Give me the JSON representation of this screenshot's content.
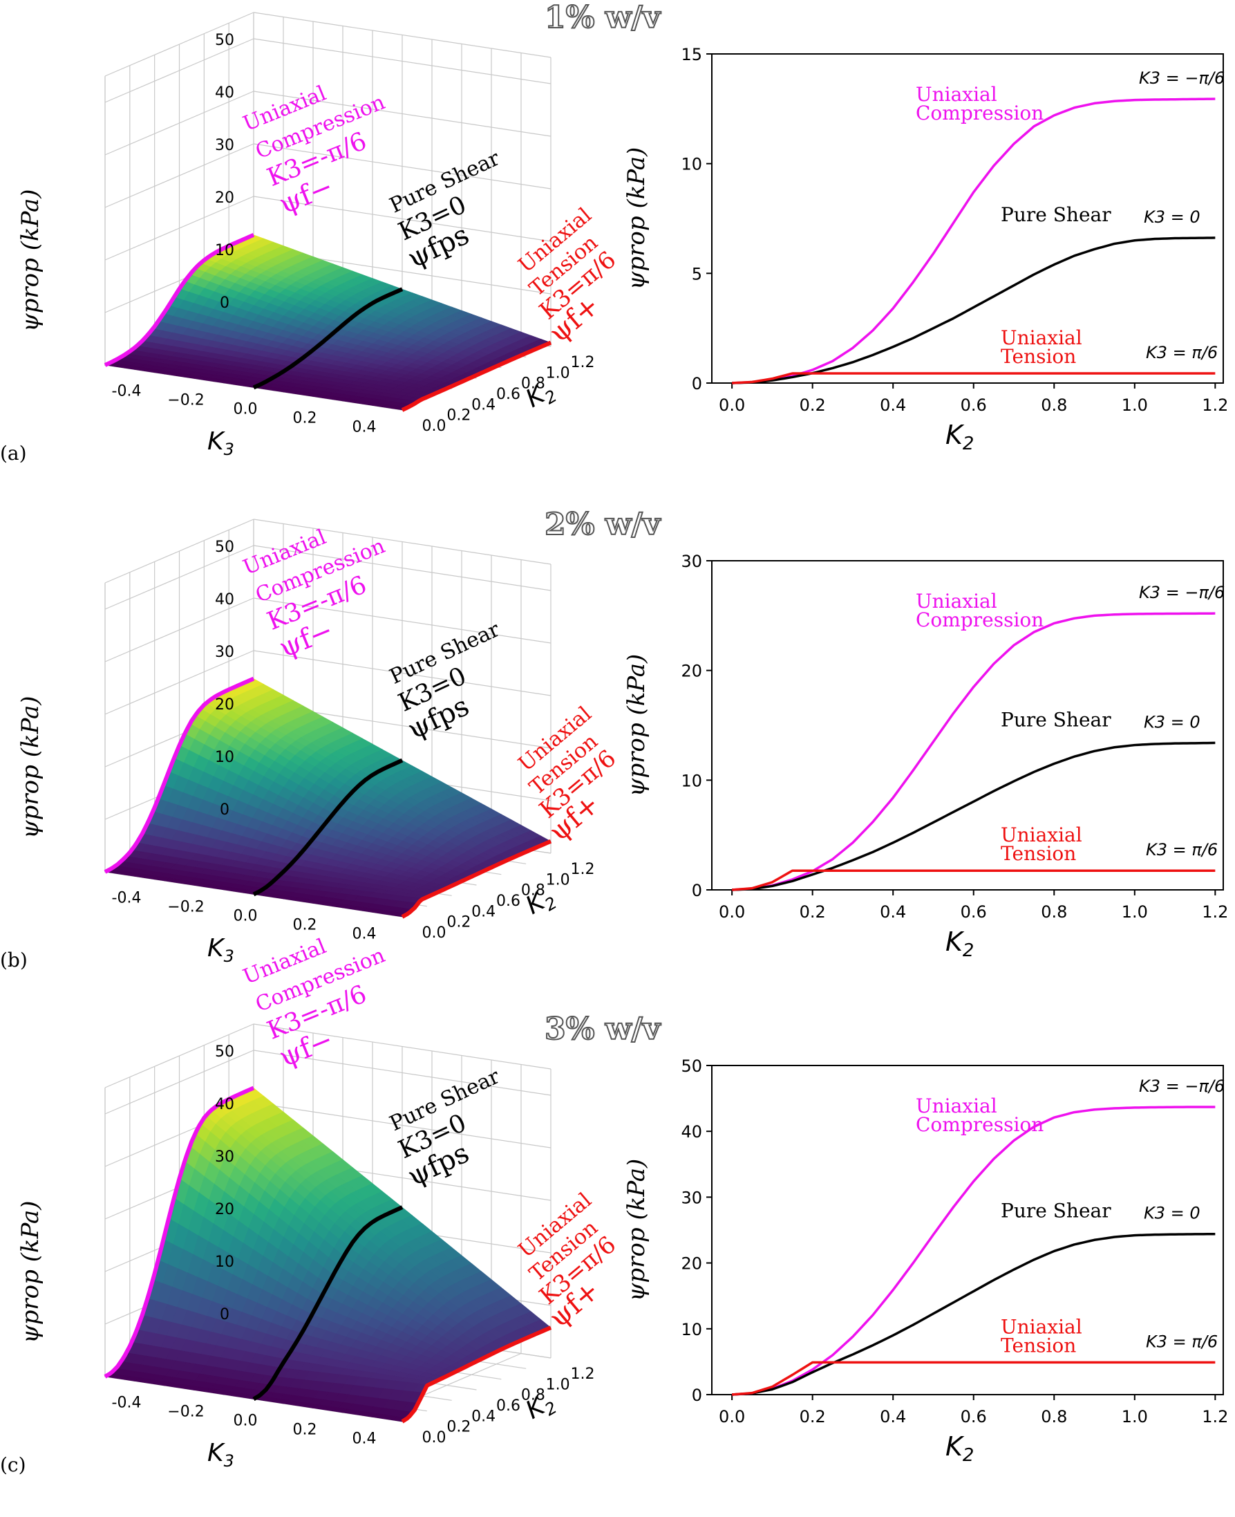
{
  "colors": {
    "compression": "#ee11ee",
    "shear": "#000000",
    "tension": "#ee1111",
    "grid": "#c8c8c8",
    "title": "#555555",
    "viridis": [
      "#440154",
      "#472c7a",
      "#3b518b",
      "#2c718e",
      "#21908d",
      "#27ad81",
      "#5cc863",
      "#aadc32",
      "#fde725"
    ]
  },
  "panels": [
    {
      "letter": "(a)",
      "title": "1% w/v",
      "surface": {
        "zlabel": "ψprop (kPa)",
        "xlabel": "K3",
        "ylabel": "K2",
        "xticks": [
          "-0.4",
          "−0.2",
          "0.0",
          "0.2",
          "0.4"
        ],
        "yticks": [
          "0.0",
          "0.2",
          "0.4",
          "0.6",
          "0.8",
          "1.0",
          "1.2"
        ],
        "zticks": [
          "0",
          "10",
          "20",
          "30",
          "40",
          "50"
        ],
        "annotations": {
          "comp": [
            "Uniaxial",
            "Compression",
            "K3=-π/6",
            "ψf−"
          ],
          "shear": [
            "Pure Shear",
            "K3=0",
            "ψfps"
          ],
          "tens": [
            "Uniaxial",
            "Tension",
            "K3=π/6",
            "ψf+"
          ]
        }
      },
      "line_chart": {
        "xlabel": "K2",
        "ylabel": "ψprop (kPa)",
        "xticks": [
          "0.0",
          "0.2",
          "0.4",
          "0.6",
          "0.8",
          "1.0",
          "1.2"
        ],
        "yticks": [
          "0",
          "5",
          "10",
          "15"
        ],
        "label_comp": [
          "Uniaxial",
          "Compression"
        ],
        "label_shear": "Pure Shear",
        "label_tens": [
          "Uniaxial",
          "Tension"
        ],
        "k3_comp": "K3 = −π/6",
        "k3_shear": "K3 = 0",
        "k3_tens": "K3 = π/6"
      }
    },
    {
      "letter": "(b)",
      "title": "2% w/v",
      "surface": {
        "zlabel": "ψprop (kPa)",
        "xlabel": "K3",
        "ylabel": "K2",
        "xticks": [
          "-0.4",
          "−0.2",
          "0.0",
          "0.2",
          "0.4"
        ],
        "yticks": [
          "0.0",
          "0.2",
          "0.4",
          "0.6",
          "0.8",
          "1.0",
          "1.2"
        ],
        "zticks": [
          "0",
          "10",
          "20",
          "30",
          "40",
          "50"
        ],
        "annotations": {
          "comp": [
            "Uniaxial",
            "Compression",
            "K3=-π/6",
            "ψf−"
          ],
          "shear": [
            "Pure Shear",
            "K3=0",
            "ψfps"
          ],
          "tens": [
            "Uniaxial",
            "Tension",
            "K3=π/6",
            "ψf+"
          ]
        }
      },
      "line_chart": {
        "xlabel": "K2",
        "ylabel": "ψprop (kPa)",
        "xticks": [
          "0.0",
          "0.2",
          "0.4",
          "0.6",
          "0.8",
          "1.0",
          "1.2"
        ],
        "yticks": [
          "0",
          "10",
          "20",
          "30"
        ],
        "label_comp": [
          "Uniaxial",
          "Compression"
        ],
        "label_shear": "Pure Shear",
        "label_tens": [
          "Uniaxial",
          "Tension"
        ],
        "k3_comp": "K3 = −π/6",
        "k3_shear": "K3 = 0",
        "k3_tens": "K3 = π/6"
      }
    },
    {
      "letter": "(c)",
      "title": "3% w/v",
      "surface": {
        "zlabel": "ψprop (kPa)",
        "xlabel": "K3",
        "ylabel": "K2",
        "xticks": [
          "-0.4",
          "−0.2",
          "0.0",
          "0.2",
          "0.4"
        ],
        "yticks": [
          "0.0",
          "0.2",
          "0.4",
          "0.6",
          "0.8",
          "1.0",
          "1.2"
        ],
        "zticks": [
          "0",
          "10",
          "20",
          "30",
          "40",
          "50"
        ],
        "annotations": {
          "comp": [
            "Uniaxial",
            "Compression",
            "K3=-π/6",
            "ψf−"
          ],
          "shear": [
            "Pure Shear",
            "K3=0",
            "ψfps"
          ],
          "tens": [
            "Uniaxial",
            "Tension",
            "K3=π/6",
            "ψf+"
          ]
        }
      },
      "line_chart": {
        "xlabel": "K2",
        "ylabel": "ψprop (kPa)",
        "xticks": [
          "0.0",
          "0.2",
          "0.4",
          "0.6",
          "0.8",
          "1.0",
          "1.2"
        ],
        "yticks": [
          "0",
          "10",
          "20",
          "30",
          "40",
          "50"
        ],
        "label_comp": [
          "Uniaxial",
          "Compression"
        ],
        "label_shear": "Pure Shear",
        "label_tens": [
          "Uniaxial",
          "Tension"
        ],
        "k3_comp": "K3 = −π/6",
        "k3_shear": "K3 = 0",
        "k3_tens": "K3 = π/6"
      }
    }
  ],
  "chart_data": [
    {
      "type": "line",
      "panel": "(a)",
      "title": "1% w/v",
      "xlabel": "K2",
      "ylabel": "ψprop (kPa)",
      "xlim": [
        -0.05,
        1.22
      ],
      "ylim": [
        0,
        15
      ],
      "x": [
        0.0,
        0.05,
        0.1,
        0.15,
        0.2,
        0.25,
        0.3,
        0.35,
        0.4,
        0.45,
        0.5,
        0.55,
        0.6,
        0.65,
        0.7,
        0.75,
        0.8,
        0.85,
        0.9,
        0.95,
        1.0,
        1.05,
        1.1,
        1.15,
        1.2
      ],
      "series": [
        {
          "name": "Uniaxial Compression (K3 = −π/6)",
          "values": [
            0.0,
            0.04,
            0.15,
            0.32,
            0.6,
            1.0,
            1.6,
            2.4,
            3.4,
            4.6,
            5.9,
            7.3,
            8.7,
            9.9,
            10.9,
            11.7,
            12.2,
            12.55,
            12.75,
            12.85,
            12.9,
            12.92,
            12.93,
            12.94,
            12.95
          ]
        },
        {
          "name": "Pure Shear (K3 = 0)",
          "values": [
            0.0,
            0.03,
            0.12,
            0.27,
            0.45,
            0.68,
            0.95,
            1.28,
            1.65,
            2.05,
            2.5,
            2.95,
            3.45,
            3.95,
            4.45,
            4.95,
            5.4,
            5.8,
            6.1,
            6.35,
            6.5,
            6.57,
            6.6,
            6.61,
            6.62
          ]
        },
        {
          "name": "Uniaxial Tension (K3 = π/6)",
          "values": [
            0.0,
            0.05,
            0.2,
            0.44,
            0.44,
            0.44,
            0.44,
            0.44,
            0.44,
            0.44,
            0.44,
            0.44,
            0.44,
            0.44,
            0.44,
            0.44,
            0.44,
            0.44,
            0.44,
            0.44,
            0.44,
            0.44,
            0.44,
            0.44,
            0.44
          ]
        }
      ]
    },
    {
      "type": "line",
      "panel": "(b)",
      "title": "2% w/v",
      "xlabel": "K2",
      "ylabel": "ψprop (kPa)",
      "xlim": [
        -0.05,
        1.22
      ],
      "ylim": [
        0,
        30
      ],
      "x": [
        0.0,
        0.05,
        0.1,
        0.15,
        0.2,
        0.25,
        0.3,
        0.35,
        0.4,
        0.45,
        0.5,
        0.55,
        0.6,
        0.65,
        0.7,
        0.75,
        0.8,
        0.85,
        0.9,
        0.95,
        1.0,
        1.05,
        1.1,
        1.15,
        1.2
      ],
      "series": [
        {
          "name": "Uniaxial Compression (K3 = −π/6)",
          "values": [
            0.0,
            0.1,
            0.4,
            0.95,
            1.7,
            2.8,
            4.3,
            6.2,
            8.4,
            10.9,
            13.5,
            16.1,
            18.5,
            20.6,
            22.3,
            23.5,
            24.3,
            24.75,
            25.0,
            25.1,
            25.15,
            25.17,
            25.18,
            25.19,
            25.2
          ]
        },
        {
          "name": "Pure Shear (K3 = 0)",
          "values": [
            0.0,
            0.08,
            0.35,
            0.8,
            1.4,
            2.0,
            2.7,
            3.45,
            4.3,
            5.2,
            6.15,
            7.1,
            8.05,
            9.0,
            9.9,
            10.75,
            11.5,
            12.15,
            12.65,
            13.0,
            13.2,
            13.3,
            13.35,
            13.37,
            13.4
          ]
        },
        {
          "name": "Uniaxial Tension (K3 = π/6)",
          "values": [
            0.0,
            0.15,
            0.7,
            1.75,
            1.75,
            1.75,
            1.75,
            1.75,
            1.75,
            1.75,
            1.75,
            1.75,
            1.75,
            1.75,
            1.75,
            1.75,
            1.75,
            1.75,
            1.75,
            1.75,
            1.75,
            1.75,
            1.75,
            1.75,
            1.75
          ]
        }
      ]
    },
    {
      "type": "line",
      "panel": "(c)",
      "title": "3% w/v",
      "xlabel": "K2",
      "ylabel": "ψprop (kPa)",
      "xlim": [
        -0.05,
        1.22
      ],
      "ylim": [
        0,
        50
      ],
      "x": [
        0.0,
        0.05,
        0.1,
        0.15,
        0.2,
        0.25,
        0.3,
        0.35,
        0.4,
        0.45,
        0.5,
        0.55,
        0.6,
        0.65,
        0.7,
        0.75,
        0.8,
        0.85,
        0.9,
        0.95,
        1.0,
        1.05,
        1.1,
        1.15,
        1.2
      ],
      "series": [
        {
          "name": "Uniaxial Compression (K3 = −π/6)",
          "values": [
            0.0,
            0.2,
            0.9,
            2.1,
            3.8,
            6.0,
            8.8,
            12.1,
            15.9,
            20.0,
            24.3,
            28.5,
            32.4,
            35.8,
            38.6,
            40.7,
            42.1,
            42.9,
            43.3,
            43.5,
            43.6,
            43.65,
            43.68,
            43.7,
            43.7
          ]
        },
        {
          "name": "Pure Shear (K3 = 0)",
          "values": [
            0.0,
            0.2,
            0.8,
            1.9,
            3.4,
            4.8,
            6.1,
            7.5,
            9.0,
            10.6,
            12.3,
            14.0,
            15.7,
            17.4,
            19.0,
            20.5,
            21.8,
            22.8,
            23.5,
            23.95,
            24.2,
            24.3,
            24.35,
            24.38,
            24.4
          ]
        },
        {
          "name": "Uniaxial Tension (K3 = π/6)",
          "values": [
            0.0,
            0.25,
            1.2,
            3.0,
            4.9,
            4.9,
            4.9,
            4.9,
            4.9,
            4.9,
            4.9,
            4.9,
            4.9,
            4.9,
            4.9,
            4.9,
            4.9,
            4.9,
            4.9,
            4.9,
            4.9,
            4.9,
            4.9,
            4.9,
            4.9
          ]
        }
      ]
    }
  ]
}
